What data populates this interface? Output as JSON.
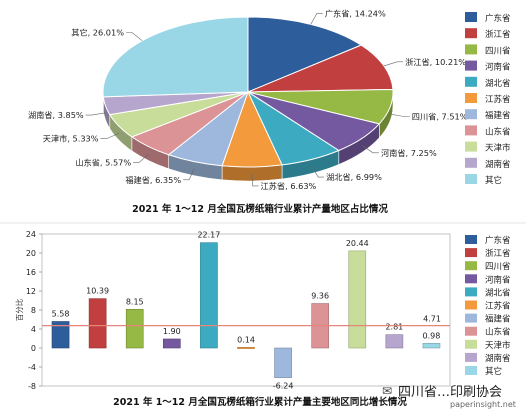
{
  "colors": {
    "广东省": "#2e5d9c",
    "浙江省": "#c23f3f",
    "四川省": "#96b844",
    "河南省": "#7459a0",
    "湖北省": "#3cabc1",
    "江苏省": "#f39a3c",
    "福建省": "#9db8dc",
    "山东省": "#dc9396",
    "天津市": "#c8dd9a",
    "湖南省": "#b6a6cd",
    "其它": "#99d7e6",
    "reference_line": "#e6867a"
  },
  "chart_data": [
    {
      "type": "pie",
      "title": "2021 年 1～12 月全国瓦楞纸箱行业累计产量地区占比情况",
      "legend_position": "right",
      "series": [
        {
          "name": "广东省",
          "value": 14.24,
          "label": "广东省, 14.24%"
        },
        {
          "name": "浙江省",
          "value": 10.21,
          "label": "浙江省, 10.21%"
        },
        {
          "name": "四川省",
          "value": 7.51,
          "label": "四川省, 7.51%"
        },
        {
          "name": "河南省",
          "value": 7.25,
          "label": "河南省, 7.25%"
        },
        {
          "name": "湖北省",
          "value": 6.99,
          "label": "湖北省, 6.99%"
        },
        {
          "name": "江苏省",
          "value": 6.63,
          "label": "江苏省, 6.63%"
        },
        {
          "name": "福建省",
          "value": 6.35,
          "label": "福建省, 6.35%"
        },
        {
          "name": "山东省",
          "value": 5.57,
          "label": "山东省, 5.57%"
        },
        {
          "name": "天津市",
          "value": 5.33,
          "label": "天津市, 5.33%"
        },
        {
          "name": "湖南省",
          "value": 3.85,
          "label": "湖南省, 3.85%"
        },
        {
          "name": "其它",
          "value": 26.01,
          "label": "其它, 26.01%"
        }
      ]
    },
    {
      "type": "bar",
      "title": "2021 年 1～12 月全国瓦楞纸箱行业累计产量主要地区同比增长情况",
      "ylabel": "百分比",
      "ylim": [
        -8,
        24
      ],
      "yticks": [
        24,
        20,
        16,
        12,
        8,
        4,
        0,
        -4,
        -8
      ],
      "grid": false,
      "legend_position": "right",
      "reference_line": {
        "value": 4.71,
        "label": "4.71"
      },
      "categories": [
        "广东省",
        "浙江省",
        "四川省",
        "河南省",
        "湖北省",
        "江苏省",
        "福建省",
        "山东省",
        "天津市",
        "湖南省",
        "其它"
      ],
      "values": [
        5.58,
        10.39,
        8.15,
        1.9,
        22.17,
        0.14,
        -6.24,
        9.36,
        20.44,
        2.81,
        0.98
      ],
      "value_labels": [
        "5.58",
        "10.39",
        "8.15",
        "1.90",
        "22.17",
        "0.14",
        "-6.24",
        "9.36",
        "20.44",
        "2.81",
        "0.98"
      ]
    }
  ],
  "watermark": {
    "text": "四川省…印刷协会",
    "subtext": "paperinsight.net"
  }
}
